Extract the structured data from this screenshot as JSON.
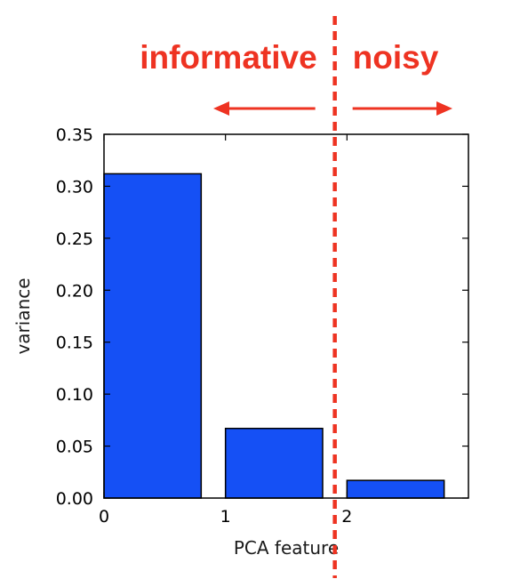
{
  "chart_data": {
    "type": "bar",
    "categories": [
      "0",
      "1",
      "2"
    ],
    "x": [
      0,
      1,
      2
    ],
    "values": [
      0.312,
      0.067,
      0.017
    ],
    "xlabel": "PCA feature",
    "ylabel": "variance",
    "ylim": [
      0,
      0.35
    ],
    "xlim": [
      0,
      3
    ],
    "yticks": [
      "0.00",
      "0.05",
      "0.10",
      "0.15",
      "0.20",
      "0.25",
      "0.30",
      "0.35"
    ],
    "xticks": [
      "0",
      "1",
      "2"
    ],
    "grid": false,
    "bar_color": "#1550f5",
    "annotations": {
      "left_label": "informative",
      "right_label": "noisy",
      "color": "#ee3322",
      "divider_x": 1.9
    }
  }
}
